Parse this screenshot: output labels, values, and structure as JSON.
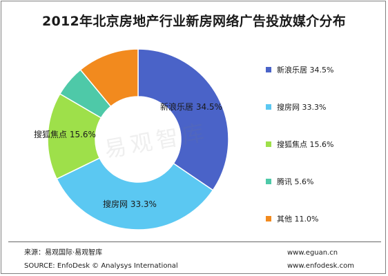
{
  "title": "2012年北京房地产行业新房网络广告投放媒介分布",
  "watermark": "易观智库",
  "chart_data": {
    "type": "pie",
    "donut": true,
    "title": "2012年北京房地产行业新房网络广告投放媒介分布",
    "slices": [
      {
        "name": "新浪乐居",
        "value": 34.5,
        "label": "34.5%",
        "color": "#4a63c8"
      },
      {
        "name": "搜房网",
        "value": 33.3,
        "label": "33.3%",
        "color": "#5bc8f2"
      },
      {
        "name": "搜狐焦点",
        "value": 15.6,
        "label": "15.6%",
        "color": "#9ee04a"
      },
      {
        "name": "腾讯",
        "value": 5.6,
        "label": "5.6%",
        "color": "#4ec9a8"
      },
      {
        "name": "其他",
        "value": 11.0,
        "label": "11.0%",
        "color": "#f28a1e"
      }
    ],
    "slice_labels": [
      "新浪乐居",
      "搜房网",
      "搜狐焦点"
    ],
    "legend_placement": "right"
  },
  "legend": [
    {
      "name": "新浪乐居",
      "pct": "34.5%"
    },
    {
      "name": "搜房网",
      "pct": "33.3%"
    },
    {
      "name": "搜狐焦点",
      "pct": "15.6%"
    },
    {
      "name": "腾讯",
      "pct": "5.6%"
    },
    {
      "name": "其他",
      "pct": "11.0%"
    }
  ],
  "footer": {
    "source_cn": "来源：易观国际·易观智库",
    "source_en": "SOURCE: EnfoDesk © Analysys International",
    "url1": "www.eguan.cn",
    "url2": "www.enfodesk.com"
  }
}
